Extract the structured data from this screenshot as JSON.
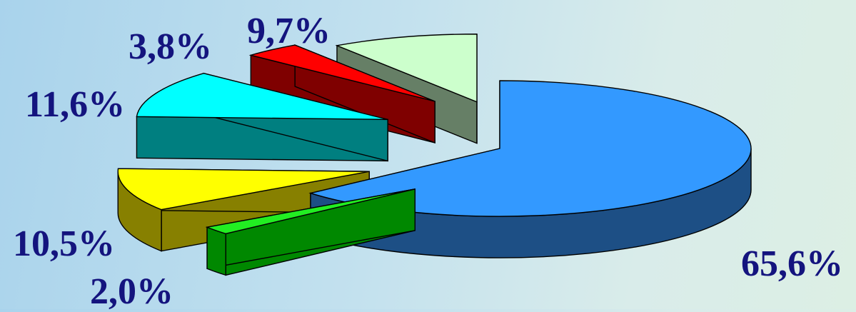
{
  "chart_data": {
    "type": "pie",
    "style": "3d-exploded",
    "title": "",
    "slices": [
      {
        "value": 65.6,
        "label": "65,6%",
        "color": "#3399ff",
        "side_color": "#1d4f85"
      },
      {
        "value": 2.0,
        "label": "2,0%",
        "color": "#22ee22",
        "side_color": "#008800"
      },
      {
        "value": 10.5,
        "label": "10,5%",
        "color": "#ffff00",
        "side_color": "#878000"
      },
      {
        "value": 11.6,
        "label": "11,6%",
        "color": "#00ffff",
        "side_color": "#007f80"
      },
      {
        "value": 3.8,
        "label": "3,8%",
        "color": "#ff0000",
        "side_color": "#7f0000"
      },
      {
        "value": 9.7,
        "label": "9,7%",
        "color": "#ccffcc",
        "side_color": "#667f66"
      }
    ]
  }
}
